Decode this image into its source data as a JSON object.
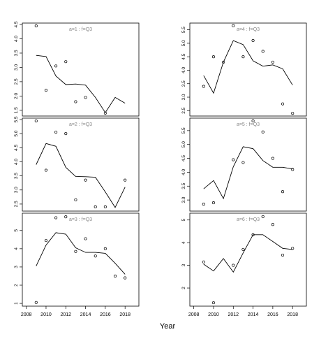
{
  "chart_data": [
    {
      "type": "line",
      "title": "a=1 : f=Q3",
      "xlabel": "Year",
      "xlim": [
        2007.6,
        2019.4
      ],
      "ylim": [
        1.3,
        4.55
      ],
      "yticks": [
        "1.5",
        "2.0",
        "2.5",
        "3.0",
        "3.5",
        "4.0",
        "4.5"
      ],
      "series": [
        {
          "kind": "points",
          "x": [
            2009,
            2010,
            2011,
            2012,
            2013,
            2014,
            2016
          ],
          "y": [
            4.45,
            2.2,
            3.05,
            3.2,
            1.8,
            1.95,
            1.4
          ]
        },
        {
          "kind": "line",
          "x": [
            2009,
            2010,
            2011,
            2012,
            2013,
            2014,
            2015,
            2016,
            2017,
            2018
          ],
          "y": [
            3.42,
            3.38,
            2.7,
            2.4,
            2.42,
            2.38,
            1.95,
            1.42,
            1.95,
            1.75
          ]
        }
      ]
    },
    {
      "type": "line",
      "title": "a=4 : f=Q3",
      "xlabel": "Year",
      "xlim": [
        2007.6,
        2019.4
      ],
      "ylim": [
        2.3,
        5.75
      ],
      "yticks": [
        "2.5",
        "3.0",
        "3.5",
        "4.0",
        "4.5",
        "5.0",
        "5.5"
      ],
      "series": [
        {
          "kind": "points",
          "x": [
            2009,
            2010,
            2011,
            2012,
            2013,
            2014,
            2015,
            2016,
            2017,
            2018
          ],
          "y": [
            3.4,
            4.5,
            4.3,
            5.65,
            4.5,
            5.1,
            4.7,
            4.3,
            2.75,
            2.4
          ]
        },
        {
          "kind": "line",
          "x": [
            2009,
            2010,
            2011,
            2012,
            2013,
            2014,
            2015,
            2016,
            2017,
            2018
          ],
          "y": [
            3.8,
            3.15,
            4.3,
            5.1,
            4.95,
            4.35,
            4.15,
            4.2,
            4.05,
            3.45
          ]
        }
      ]
    },
    {
      "type": "line",
      "title": "a=2 : f=Q3",
      "xlabel": "Year",
      "xlim": [
        2007.6,
        2019.4
      ],
      "ylim": [
        2.25,
        5.55
      ],
      "yticks": [
        "2.5",
        "3.0",
        "3.5",
        "4.0",
        "4.5",
        "5.0",
        "5.5"
      ],
      "series": [
        {
          "kind": "points",
          "x": [
            2009,
            2010,
            2011,
            2012,
            2013,
            2014,
            2015,
            2016,
            2018
          ],
          "y": [
            5.45,
            3.7,
            5.05,
            5.0,
            2.65,
            3.35,
            2.4,
            2.4,
            3.35
          ]
        },
        {
          "kind": "line",
          "x": [
            2009,
            2010,
            2011,
            2012,
            2013,
            2014,
            2015,
            2016,
            2017,
            2018
          ],
          "y": [
            3.9,
            4.65,
            4.55,
            3.8,
            3.48,
            3.47,
            3.45,
            2.93,
            2.38,
            3.1
          ]
        }
      ]
    },
    {
      "type": "line",
      "title": "a=5 : f=Q3",
      "xlabel": "Year",
      "xlim": [
        2007.6,
        2019.4
      ],
      "ylim": [
        2.6,
        5.95
      ],
      "yticks": [
        "3.0",
        "3.5",
        "4.0",
        "4.5",
        "5.0",
        "5.5"
      ],
      "series": [
        {
          "kind": "points",
          "x": [
            2009,
            2010,
            2012,
            2013,
            2014,
            2015,
            2016,
            2017,
            2018
          ],
          "y": [
            2.85,
            2.9,
            4.45,
            4.35,
            5.85,
            5.45,
            4.5,
            3.3,
            4.1
          ]
        },
        {
          "kind": "line",
          "x": [
            2009,
            2010,
            2011,
            2012,
            2013,
            2014,
            2015,
            2016,
            2017,
            2018
          ],
          "y": [
            3.4,
            3.7,
            3.05,
            4.2,
            4.92,
            4.85,
            4.42,
            4.18,
            4.18,
            4.12
          ]
        }
      ]
    },
    {
      "type": "line",
      "title": "a=3 : f=Q3",
      "xlabel": "Year",
      "xlim": [
        2007.6,
        2019.4
      ],
      "ylim": [
        0.85,
        5.95
      ],
      "xticks": [
        "2008",
        "2010",
        "2012",
        "2014",
        "2016",
        "2018"
      ],
      "yticks": [
        "1",
        "2",
        "3",
        "4",
        "5"
      ],
      "series": [
        {
          "kind": "points",
          "x": [
            2009,
            2010,
            2011,
            2012,
            2013,
            2014,
            2015,
            2016,
            2017,
            2018
          ],
          "y": [
            1.05,
            4.45,
            5.7,
            5.75,
            3.85,
            4.55,
            3.6,
            4.0,
            2.5,
            2.4
          ]
        },
        {
          "kind": "line",
          "x": [
            2009,
            2010,
            2011,
            2012,
            2013,
            2014,
            2015,
            2016,
            2017,
            2018
          ],
          "y": [
            3.05,
            4.2,
            4.88,
            4.8,
            4.05,
            3.8,
            3.8,
            3.75,
            3.2,
            2.6
          ]
        }
      ]
    },
    {
      "type": "line",
      "title": "a=6 : f=Q3",
      "xlabel": "Year",
      "xlim": [
        2007.6,
        2019.4
      ],
      "ylim": [
        1.2,
        5.3
      ],
      "xticks": [
        "2008",
        "2010",
        "2012",
        "2014",
        "2016",
        "2018"
      ],
      "yticks": [
        "2",
        "3",
        "4",
        "5"
      ],
      "series": [
        {
          "kind": "points",
          "x": [
            2009,
            2010,
            2012,
            2013,
            2014,
            2015,
            2016,
            2017,
            2018
          ],
          "y": [
            3.15,
            1.35,
            3.0,
            3.7,
            4.35,
            5.15,
            4.8,
            3.45,
            3.75
          ]
        },
        {
          "kind": "line",
          "x": [
            2009,
            2010,
            2011,
            2012,
            2013,
            2014,
            2015,
            2016,
            2017,
            2018
          ],
          "y": [
            3.05,
            2.75,
            3.3,
            2.7,
            3.55,
            4.35,
            4.35,
            4.05,
            3.75,
            3.7
          ]
        }
      ]
    }
  ],
  "shared_xlabel": "Year"
}
